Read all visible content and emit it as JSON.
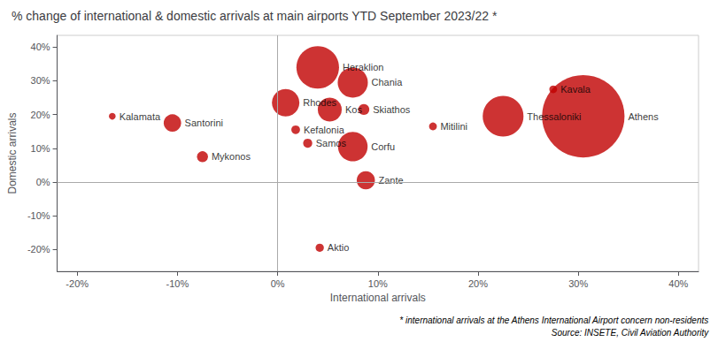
{
  "chart_data": {
    "type": "scatter",
    "title": "% change of international & domestic arrivals at main airports YTD September 2023/22 *",
    "xlabel": "International arrivals",
    "ylabel": "Domestic arrivals",
    "annotations": [
      "* international arrivals at the Athens International Airport concern non-residents",
      "Source: INSETE, Civil Aviation Authority"
    ],
    "labels": [
      "Kalamata",
      "Santorini",
      "Mykonos",
      "Rhodes",
      "Heraklion",
      "Kos",
      "Kefalonia",
      "Samos",
      "Chania",
      "Skiathos",
      "Corfu",
      "Zante",
      "Aktio",
      "Mitilini",
      "Kavala",
      "Thessaloniki",
      "Athens"
    ],
    "x": [
      -0.165,
      -0.105,
      -0.075,
      0.008,
      0.04,
      0.052,
      0.018,
      0.03,
      0.075,
      0.086,
      0.075,
      0.088,
      0.042,
      0.155,
      0.275,
      0.225,
      0.305
    ],
    "values": [
      0.195,
      0.175,
      0.075,
      0.235,
      0.34,
      0.215,
      0.155,
      0.115,
      0.295,
      0.215,
      0.105,
      0.005,
      -0.195,
      0.165,
      0.275,
      0.195,
      0.195
    ],
    "sizes": [
      30,
      200,
      80,
      500,
      1200,
      380,
      50,
      55,
      600,
      80,
      580,
      220,
      45,
      40,
      40,
      1100,
      4500
    ],
    "color": "#c00000",
    "xlim": [
      -0.22,
      0.42
    ],
    "ylim": [
      -0.265,
      0.435
    ],
    "xticks": [
      {
        "value": -0.2,
        "label": "-20%"
      },
      {
        "value": -0.1,
        "label": "-10%"
      },
      {
        "value": 0,
        "label": "0%"
      },
      {
        "value": 0.1,
        "label": "10%"
      },
      {
        "value": 0.2,
        "label": "20%"
      },
      {
        "value": 0.3,
        "label": "30%"
      },
      {
        "value": 0.4,
        "label": "40%"
      }
    ],
    "yticks": [
      {
        "value": -0.2,
        "label": "-20%"
      },
      {
        "value": -0.1,
        "label": "-10%"
      },
      {
        "value": 0,
        "label": "0%"
      },
      {
        "value": 0.1,
        "label": "10%"
      },
      {
        "value": 0.2,
        "label": "20%"
      },
      {
        "value": 0.3,
        "label": "30%"
      },
      {
        "value": 0.4,
        "label": "40%"
      }
    ],
    "grid": false
  }
}
